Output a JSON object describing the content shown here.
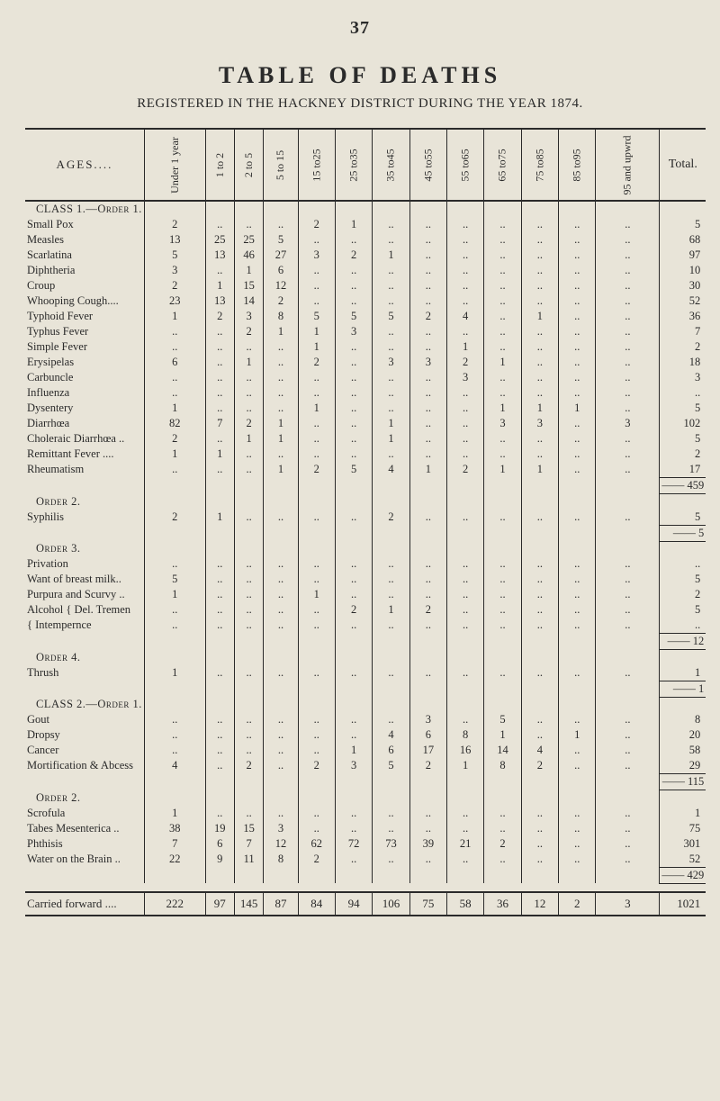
{
  "page_number": "37",
  "main_title": "TABLE OF DEATHS",
  "subtitle": "REGISTERED IN THE HACKNEY DISTRICT DURING THE YEAR 1874.",
  "header_ages": "AGES....",
  "age_cols": [
    "Under 1 year",
    "1 to 2",
    "2 to 5",
    "5 to 15",
    "15 to25",
    "25 to35",
    "35 to45",
    "45 to55",
    "55 to65",
    "65 to75",
    "75 to85",
    "85 to95",
    "95 and upwrd"
  ],
  "total_label": "Total.",
  "rows": [
    {
      "type": "section",
      "label": "CLASS 1.—Order 1."
    },
    {
      "label": "Small Pox",
      "v": [
        "2",
        "..",
        "..",
        "..",
        "2",
        "1",
        "..",
        "..",
        "..",
        "..",
        "..",
        "..",
        ".."
      ],
      "t": "5"
    },
    {
      "label": "Measles",
      "v": [
        "13",
        "25",
        "25",
        "5",
        "..",
        "..",
        "..",
        "..",
        "..",
        "..",
        "..",
        "..",
        ".."
      ],
      "t": "68"
    },
    {
      "label": "Scarlatina",
      "v": [
        "5",
        "13",
        "46",
        "27",
        "3",
        "2",
        "1",
        "..",
        "..",
        "..",
        "..",
        "..",
        ".."
      ],
      "t": "97"
    },
    {
      "label": "Diphtheria",
      "v": [
        "3",
        "..",
        "1",
        "6",
        "..",
        "..",
        "..",
        "..",
        "..",
        "..",
        "..",
        "..",
        ".."
      ],
      "t": "10"
    },
    {
      "label": "Croup",
      "v": [
        "2",
        "1",
        "15",
        "12",
        "..",
        "..",
        "..",
        "..",
        "..",
        "..",
        "..",
        "..",
        ".."
      ],
      "t": "30"
    },
    {
      "label": "Whooping Cough....",
      "v": [
        "23",
        "13",
        "14",
        "2",
        "..",
        "..",
        "..",
        "..",
        "..",
        "..",
        "..",
        "..",
        ".."
      ],
      "t": "52"
    },
    {
      "label": "Typhoid Fever",
      "v": [
        "1",
        "2",
        "3",
        "8",
        "5",
        "5",
        "5",
        "2",
        "4",
        "..",
        "1",
        "..",
        ".."
      ],
      "t": "36"
    },
    {
      "label": "Typhus Fever",
      "v": [
        "..",
        "..",
        "2",
        "1",
        "1",
        "3",
        "..",
        "..",
        "..",
        "..",
        "..",
        "..",
        ".."
      ],
      "t": "7"
    },
    {
      "label": "Simple Fever",
      "v": [
        "..",
        "..",
        "..",
        "..",
        "1",
        "..",
        "..",
        "..",
        "1",
        "..",
        "..",
        "..",
        ".."
      ],
      "t": "2"
    },
    {
      "label": "Erysipelas",
      "v": [
        "6",
        "..",
        "1",
        "..",
        "2",
        "..",
        "3",
        "3",
        "2",
        "1",
        "..",
        "..",
        ".."
      ],
      "t": "18"
    },
    {
      "label": "Carbuncle",
      "v": [
        "..",
        "..",
        "..",
        "..",
        "..",
        "..",
        "..",
        "..",
        "3",
        "..",
        "..",
        "..",
        ".."
      ],
      "t": "3"
    },
    {
      "label": "Influenza",
      "v": [
        "..",
        "..",
        "..",
        "..",
        "..",
        "..",
        "..",
        "..",
        "..",
        "..",
        "..",
        "..",
        ".."
      ],
      "t": ".."
    },
    {
      "label": "Dysentery",
      "v": [
        "1",
        "..",
        "..",
        "..",
        "1",
        "..",
        "..",
        "..",
        "..",
        "1",
        "1",
        "1",
        ".."
      ],
      "t": "5"
    },
    {
      "label": "Diarrhœa",
      "v": [
        "82",
        "7",
        "2",
        "1",
        "..",
        "..",
        "1",
        "..",
        "..",
        "3",
        "3",
        "..",
        "3"
      ],
      "t": "102"
    },
    {
      "label": "Choleraic Diarrhœa ..",
      "v": [
        "2",
        "..",
        "1",
        "1",
        "..",
        "..",
        "1",
        "..",
        "..",
        "..",
        "..",
        "..",
        ".."
      ],
      "t": "5"
    },
    {
      "label": "Remittant Fever ....",
      "v": [
        "1",
        "1",
        "..",
        "..",
        "..",
        "..",
        "..",
        "..",
        "..",
        "..",
        "..",
        "..",
        ".."
      ],
      "t": "2"
    },
    {
      "label": "Rheumatism",
      "v": [
        "..",
        "..",
        "..",
        "1",
        "2",
        "5",
        "4",
        "1",
        "2",
        "1",
        "1",
        "..",
        ".."
      ],
      "t": "17"
    },
    {
      "type": "subtotal",
      "value": "459"
    },
    {
      "type": "section",
      "label": "Order 2."
    },
    {
      "label": "Syphilis",
      "v": [
        "2",
        "1",
        "..",
        "..",
        "..",
        "..",
        "2",
        "..",
        "..",
        "..",
        "..",
        "..",
        ".."
      ],
      "t": "5"
    },
    {
      "type": "subtotal",
      "value": "5"
    },
    {
      "type": "section",
      "label": "Order 3."
    },
    {
      "label": "Privation",
      "v": [
        "..",
        "..",
        "..",
        "..",
        "..",
        "..",
        "..",
        "..",
        "..",
        "..",
        "..",
        "..",
        ".."
      ],
      "t": ".."
    },
    {
      "label": "Want of breast milk..",
      "v": [
        "5",
        "..",
        "..",
        "..",
        "..",
        "..",
        "..",
        "..",
        "..",
        "..",
        "..",
        "..",
        ".."
      ],
      "t": "5"
    },
    {
      "label": "Purpura and Scurvy ..",
      "v": [
        "1",
        "..",
        "..",
        "..",
        "1",
        "..",
        "..",
        "..",
        "..",
        "..",
        "..",
        "..",
        ".."
      ],
      "t": "2"
    },
    {
      "label": "Alcohol { Del. Tremen",
      "v": [
        "..",
        "..",
        "..",
        "..",
        "..",
        "2",
        "1",
        "2",
        "..",
        "..",
        "..",
        "..",
        ".."
      ],
      "t": "5"
    },
    {
      "label": "            { Intempernce",
      "v": [
        "..",
        "..",
        "..",
        "..",
        "..",
        "..",
        "..",
        "..",
        "..",
        "..",
        "..",
        "..",
        ".."
      ],
      "t": ".."
    },
    {
      "type": "subtotal",
      "value": "12"
    },
    {
      "type": "section",
      "label": "Order 4."
    },
    {
      "label": "Thrush",
      "v": [
        "1",
        "..",
        "..",
        "..",
        "..",
        "..",
        "..",
        "..",
        "..",
        "..",
        "..",
        "..",
        ".."
      ],
      "t": "1"
    },
    {
      "type": "subtotal",
      "value": "1"
    },
    {
      "type": "section",
      "label": "CLASS 2.—Order 1."
    },
    {
      "label": "Gout",
      "v": [
        "..",
        "..",
        "..",
        "..",
        "..",
        "..",
        "..",
        "3",
        "..",
        "5",
        "..",
        "..",
        ".."
      ],
      "t": "8"
    },
    {
      "label": "Dropsy",
      "v": [
        "..",
        "..",
        "..",
        "..",
        "..",
        "..",
        "4",
        "6",
        "8",
        "1",
        "..",
        "1",
        ".."
      ],
      "t": "20"
    },
    {
      "label": "Cancer",
      "v": [
        "..",
        "..",
        "..",
        "..",
        "..",
        "1",
        "6",
        "17",
        "16",
        "14",
        "4",
        "..",
        ".."
      ],
      "t": "58"
    },
    {
      "label": "Mortification & Abcess",
      "v": [
        "4",
        "..",
        "2",
        "..",
        "2",
        "3",
        "5",
        "2",
        "1",
        "8",
        "2",
        "..",
        ".."
      ],
      "t": "29"
    },
    {
      "type": "subtotal",
      "value": "115"
    },
    {
      "type": "section",
      "label": "Order 2."
    },
    {
      "label": "Scrofula",
      "v": [
        "1",
        "..",
        "..",
        "..",
        "..",
        "..",
        "..",
        "..",
        "..",
        "..",
        "..",
        "..",
        ".."
      ],
      "t": "1"
    },
    {
      "label": "Tabes Mesenterica ..",
      "v": [
        "38",
        "19",
        "15",
        "3",
        "..",
        "..",
        "..",
        "..",
        "..",
        "..",
        "..",
        "..",
        ".."
      ],
      "t": "75"
    },
    {
      "label": "Phthisis",
      "v": [
        "7",
        "6",
        "7",
        "12",
        "62",
        "72",
        "73",
        "39",
        "21",
        "2",
        "..",
        "..",
        ".."
      ],
      "t": "301"
    },
    {
      "label": "Water on the Brain ..",
      "v": [
        "22",
        "9",
        "11",
        "8",
        "2",
        "..",
        "..",
        "..",
        "..",
        "..",
        "..",
        "..",
        ".."
      ],
      "t": "52"
    },
    {
      "type": "subtotal",
      "value": "429"
    }
  ],
  "carried": {
    "label": "Carried forward ....",
    "v": [
      "222",
      "97",
      "145",
      "87",
      "84",
      "94",
      "106",
      "75",
      "58",
      "36",
      "12",
      "2",
      "3"
    ],
    "t": "1021"
  }
}
